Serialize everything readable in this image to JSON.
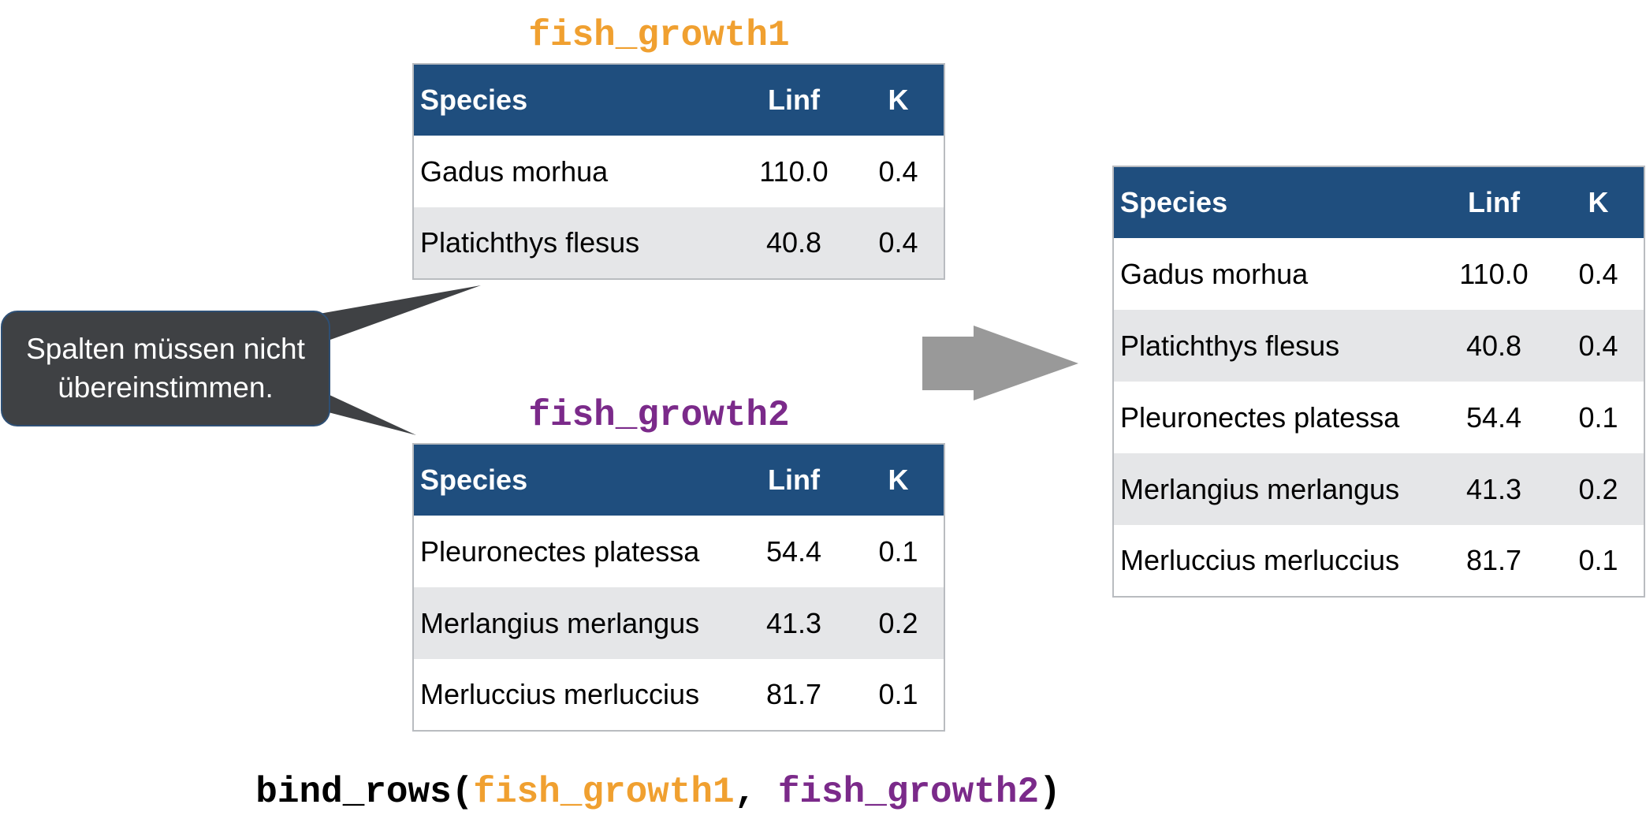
{
  "colors": {
    "orange": "#f0a030",
    "purple": "#7b2a8a",
    "header_bg": "#1f4e7e",
    "row_alt": "#e5e6e8",
    "callout_bg": "#3f4144",
    "arrow": "#999999"
  },
  "columns": [
    "Species",
    "Linf",
    "K"
  ],
  "table1": {
    "title": "fish_growth1",
    "rows": [
      {
        "species": "Gadus morhua",
        "linf": "110.0",
        "k": "0.4"
      },
      {
        "species": "Platichthys flesus",
        "linf": "40.8",
        "k": "0.4"
      }
    ]
  },
  "table2": {
    "title": "fish_growth2",
    "rows": [
      {
        "species": "Pleuronectes platessa",
        "linf": "54.4",
        "k": "0.1"
      },
      {
        "species": "Merlangius merlangus",
        "linf": "41.3",
        "k": "0.2"
      },
      {
        "species": "Merluccius merluccius",
        "linf": "81.7",
        "k": "0.1"
      }
    ]
  },
  "result_table": {
    "rows": [
      {
        "species": "Gadus morhua",
        "linf": "110.0",
        "k": "0.4"
      },
      {
        "species": "Platichthys flesus",
        "linf": "40.8",
        "k": "0.4"
      },
      {
        "species": "Pleuronectes platessa",
        "linf": "54.4",
        "k": "0.1"
      },
      {
        "species": "Merlangius merlangus",
        "linf": "41.3",
        "k": "0.2"
      },
      {
        "species": "Merluccius merluccius",
        "linf": "81.7",
        "k": "0.1"
      }
    ]
  },
  "callout": {
    "line1": "Spalten müssen nicht",
    "line2": "übereinstimmen."
  },
  "code": {
    "func": "bind_rows(",
    "arg1": "fish_growth1",
    "sep": ", ",
    "arg2": "fish_growth2",
    "close": ")"
  },
  "icons": {
    "arrow": "right-arrow-icon"
  }
}
